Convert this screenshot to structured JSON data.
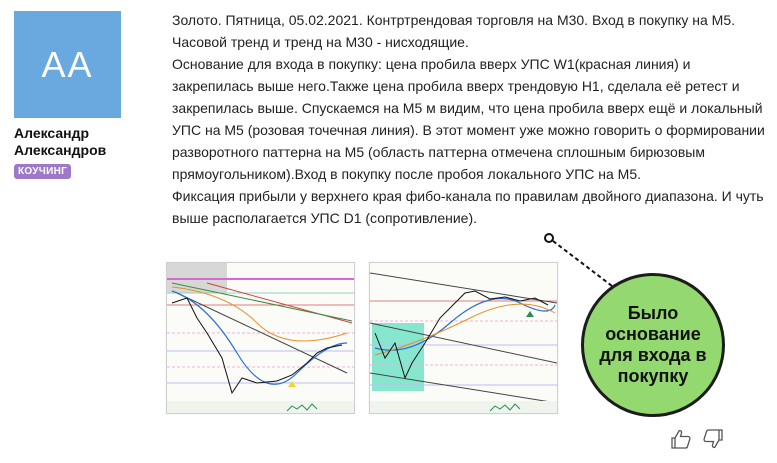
{
  "author": {
    "initials": "AA",
    "name": "Александр Александров",
    "badge": "КОУЧИНГ",
    "avatar_color": "#6aa9e0",
    "badge_color": "#9f79c9"
  },
  "post": {
    "paragraphs": [
      "Золото. Пятница, 05.02.2021. Контртрендовая торговля на M30. Вход в покупку на M5. Часовой тренд и тренд на M30 - нисходящие.",
      "Основание для входа в покупку: цена пробила вверх УПС W1(красная линия) и закрепилась выше него.Также цена пробила вверх трендовую H1, сделала её ретест и закрепилась выше. Спускаемся на M5 м видим, что цена пробила вверх ещё и локальный УПС на M5 (розовая точечная линия). В этот момент уже можно говорить о формировании разворотного паттерна на M5 (область паттерна отмечена сплошным бирюзовым прямоугольником).Вход в покупку после пробоя локального УПС на M5.",
      "Фиксация прибыли у верхнего края фибо-канала по правилам двойного диапазона. И чуть выше располагается УПС D1 (сопротивление)."
    ]
  },
  "callout": {
    "text": "Было основание для входа в покупку",
    "color": "#93d96f"
  },
  "reactions": {
    "like_icon": "thumbs-up-icon",
    "dislike_icon": "thumbs-down-icon"
  }
}
